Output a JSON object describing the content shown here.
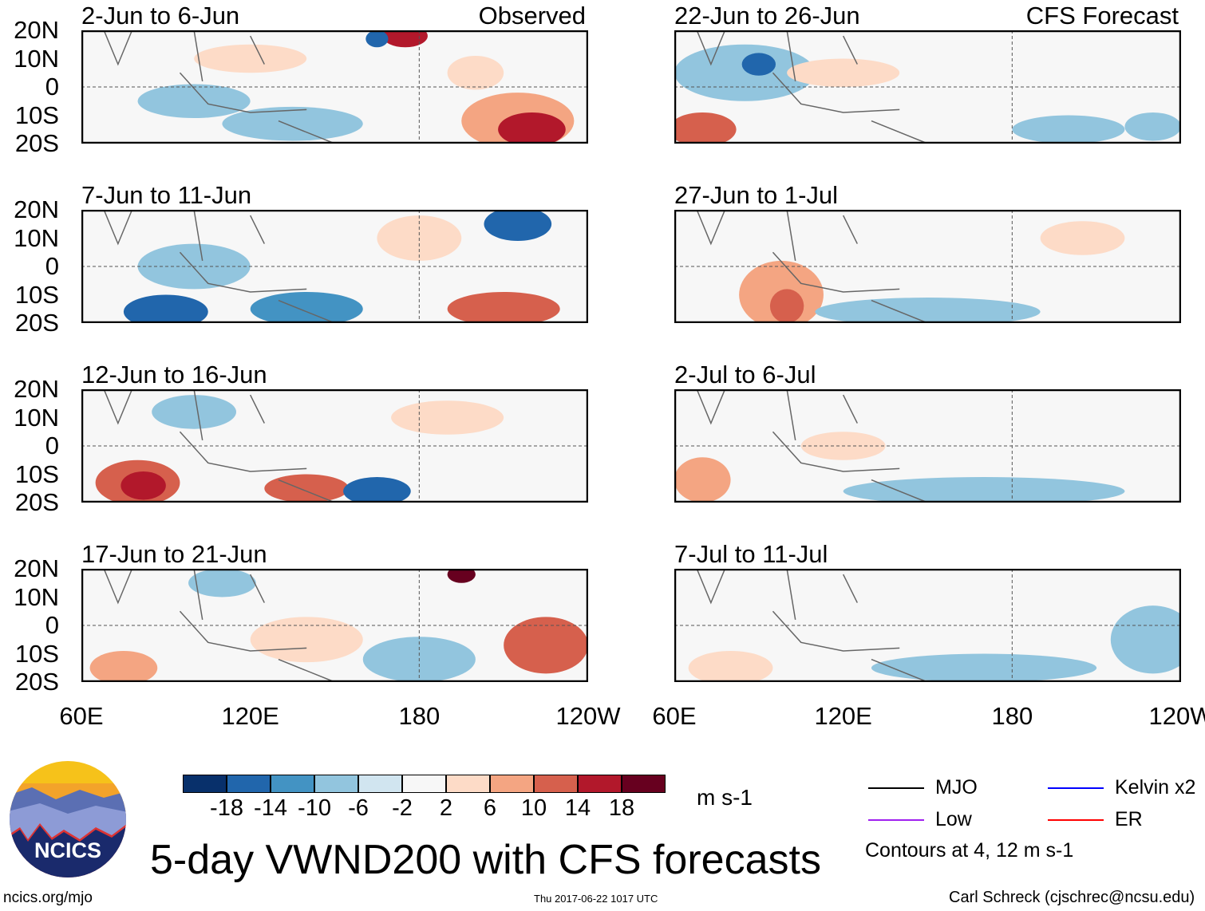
{
  "panels": [
    {
      "title": "2-Jun to 6-Jun",
      "tag": "Observed",
      "col": 0,
      "row": 0
    },
    {
      "title": "22-Jun to 26-Jun",
      "tag": "CFS Forecast",
      "col": 1,
      "row": 0
    },
    {
      "title": "7-Jun to 11-Jun",
      "tag": "",
      "col": 0,
      "row": 1
    },
    {
      "title": "27-Jun to 1-Jul",
      "tag": "",
      "col": 1,
      "row": 1
    },
    {
      "title": "12-Jun to 16-Jun",
      "tag": "",
      "col": 0,
      "row": 2
    },
    {
      "title": "2-Jul to 6-Jul",
      "tag": "",
      "col": 1,
      "row": 2
    },
    {
      "title": "17-Jun to 21-Jun",
      "tag": "",
      "col": 0,
      "row": 3
    },
    {
      "title": "7-Jul to 11-Jul",
      "tag": "",
      "col": 1,
      "row": 3
    }
  ],
  "lat_labels": [
    "20N",
    "10N",
    "0",
    "10S",
    "20S"
  ],
  "lon_labels": [
    "60E",
    "120E",
    "180",
    "120W"
  ],
  "chart_data": {
    "type": "heatmap",
    "title": "5-day VWND200 with CFS forecasts",
    "variable": "VWND200",
    "units": "m s-1",
    "lat_range": [
      -20,
      20
    ],
    "lon_range": [
      60,
      240
    ],
    "levels": [
      -18,
      -14,
      -10,
      -6,
      -2,
      2,
      6,
      10,
      14,
      18
    ],
    "colors": [
      "#08306b",
      "#2166ac",
      "#4393c3",
      "#92c5de",
      "#d1e5f0",
      "#f7f7f7",
      "#fddbc7",
      "#f4a582",
      "#d6604d",
      "#b2182b",
      "#67001f"
    ],
    "legend": [
      {
        "label": "MJO",
        "color": "#000000"
      },
      {
        "label": "Kelvin x2",
        "color": "#0000ff"
      },
      {
        "label": "Low",
        "color": "#a020f0"
      },
      {
        "label": "ER",
        "color": "#ff0000"
      }
    ],
    "contour_note": "Contours at 4, 12 m s-1"
  },
  "footer": {
    "logo_text": "NCICS",
    "url": "ncics.org/mjo",
    "timestamp": "Thu 2017-06-22 1017 UTC",
    "credit": "Carl Schreck (cjschrec@ncsu.edu)"
  }
}
